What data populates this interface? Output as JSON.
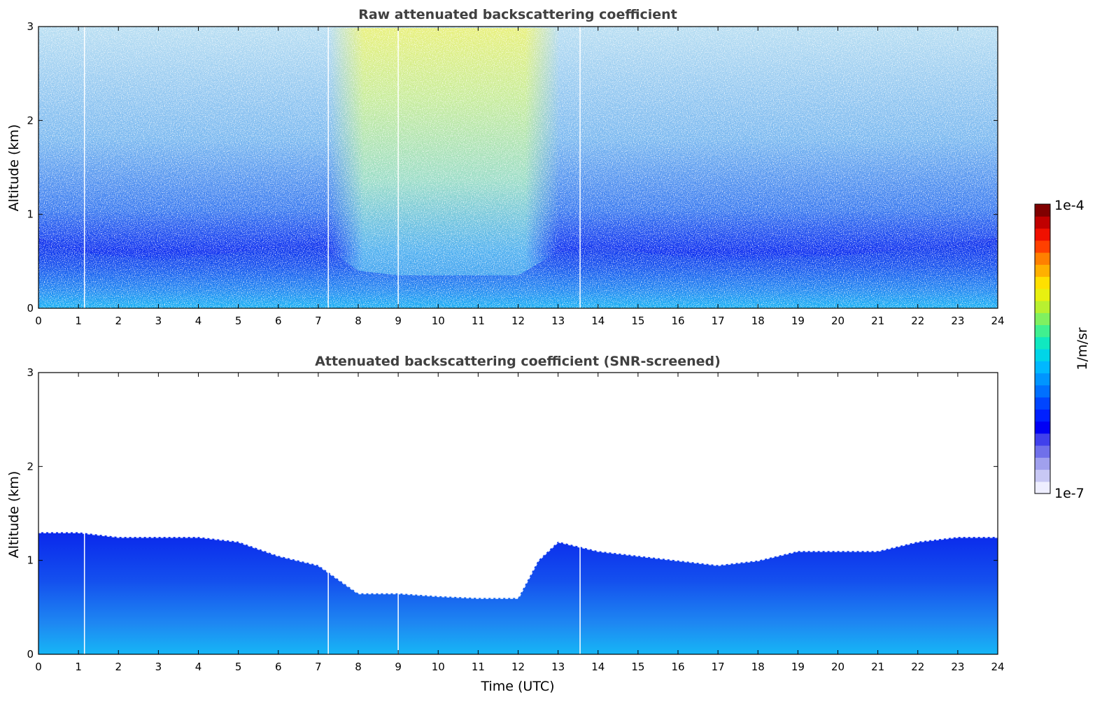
{
  "chart_data": [
    {
      "type": "heatmap",
      "title": "Raw attenuated backscattering coefficient",
      "xlabel": "",
      "ylabel": "Altitude (km)",
      "xlim": [
        0,
        24
      ],
      "ylim": [
        0,
        3
      ],
      "xticks": [
        0,
        1,
        2,
        3,
        4,
        5,
        6,
        7,
        8,
        9,
        10,
        11,
        12,
        13,
        14,
        15,
        16,
        17,
        18,
        19,
        20,
        21,
        22,
        23,
        24
      ],
      "yticks": [
        0,
        1,
        2,
        3
      ],
      "grid": false,
      "color_scale": "log",
      "value_range": [
        "1e-7",
        "1e-4"
      ],
      "missing_data_times": [
        1.15,
        7.25,
        9.0,
        13.55
      ],
      "boundary_layer_top_km": [
        {
          "x": 0,
          "y": 0.75
        },
        {
          "x": 1,
          "y": 0.6
        },
        {
          "x": 2,
          "y": 0.55
        },
        {
          "x": 3,
          "y": 0.5
        },
        {
          "x": 4,
          "y": 0.55
        },
        {
          "x": 5,
          "y": 0.6
        },
        {
          "x": 6,
          "y": 0.65
        },
        {
          "x": 7,
          "y": 0.7
        },
        {
          "x": 8,
          "y": 0.4
        },
        {
          "x": 9,
          "y": 0.35
        },
        {
          "x": 10,
          "y": 0.35
        },
        {
          "x": 11,
          "y": 0.35
        },
        {
          "x": 12,
          "y": 0.35
        },
        {
          "x": 13,
          "y": 0.6
        },
        {
          "x": 14,
          "y": 0.65
        },
        {
          "x": 15,
          "y": 0.6
        },
        {
          "x": 16,
          "y": 0.55
        },
        {
          "x": 17,
          "y": 0.5
        },
        {
          "x": 18,
          "y": 0.5
        },
        {
          "x": 19,
          "y": 0.55
        },
        {
          "x": 20,
          "y": 0.55
        },
        {
          "x": 21,
          "y": 0.6
        },
        {
          "x": 22,
          "y": 0.65
        },
        {
          "x": 23,
          "y": 0.7
        },
        {
          "x": 24,
          "y": 0.75
        }
      ]
    },
    {
      "type": "heatmap",
      "title": "Attenuated backscattering coefficient (SNR-screened)",
      "xlabel": "Time (UTC)",
      "ylabel": "Altitude (km)",
      "xlim": [
        0,
        24
      ],
      "ylim": [
        0,
        3
      ],
      "xticks": [
        0,
        1,
        2,
        3,
        4,
        5,
        6,
        7,
        8,
        9,
        10,
        11,
        12,
        13,
        14,
        15,
        16,
        17,
        18,
        19,
        20,
        21,
        22,
        23,
        24
      ],
      "yticks": [
        0,
        1,
        2,
        3
      ],
      "grid": false,
      "color_scale": "log",
      "value_range": [
        "1e-7",
        "1e-4"
      ],
      "missing_data_times": [
        1.15,
        7.25,
        9.0,
        13.55
      ],
      "signal_top_km": [
        {
          "x": 0,
          "y": 1.3
        },
        {
          "x": 1,
          "y": 1.3
        },
        {
          "x": 2,
          "y": 1.25
        },
        {
          "x": 3,
          "y": 1.25
        },
        {
          "x": 4,
          "y": 1.25
        },
        {
          "x": 5,
          "y": 1.2
        },
        {
          "x": 6,
          "y": 1.05
        },
        {
          "x": 7,
          "y": 0.95
        },
        {
          "x": 7.5,
          "y": 0.8
        },
        {
          "x": 8,
          "y": 0.65
        },
        {
          "x": 9,
          "y": 0.65
        },
        {
          "x": 10,
          "y": 0.62
        },
        {
          "x": 11,
          "y": 0.6
        },
        {
          "x": 12,
          "y": 0.6
        },
        {
          "x": 12.5,
          "y": 1.0
        },
        {
          "x": 13,
          "y": 1.2
        },
        {
          "x": 14,
          "y": 1.1
        },
        {
          "x": 15,
          "y": 1.05
        },
        {
          "x": 16,
          "y": 1.0
        },
        {
          "x": 17,
          "y": 0.95
        },
        {
          "x": 18,
          "y": 1.0
        },
        {
          "x": 19,
          "y": 1.1
        },
        {
          "x": 20,
          "y": 1.1
        },
        {
          "x": 21,
          "y": 1.1
        },
        {
          "x": 22,
          "y": 1.2
        },
        {
          "x": 23,
          "y": 1.25
        },
        {
          "x": 24,
          "y": 1.25
        }
      ]
    }
  ],
  "colorbar": {
    "label": "1/m/sr",
    "max_label": "1e-4",
    "min_label": "1e-7",
    "colors": [
      "#eeeeff",
      "#c8c8f4",
      "#a0a0ee",
      "#7070ea",
      "#4040ec",
      "#0000f5",
      "#0020ff",
      "#0045ff",
      "#0070ff",
      "#0095ff",
      "#00b8ff",
      "#00d5e8",
      "#10e8c0",
      "#40f090",
      "#80f060",
      "#b8f030",
      "#e8f010",
      "#ffe000",
      "#ffb000",
      "#ff8000",
      "#ff4000",
      "#f01000",
      "#c00000",
      "#800000"
    ]
  }
}
